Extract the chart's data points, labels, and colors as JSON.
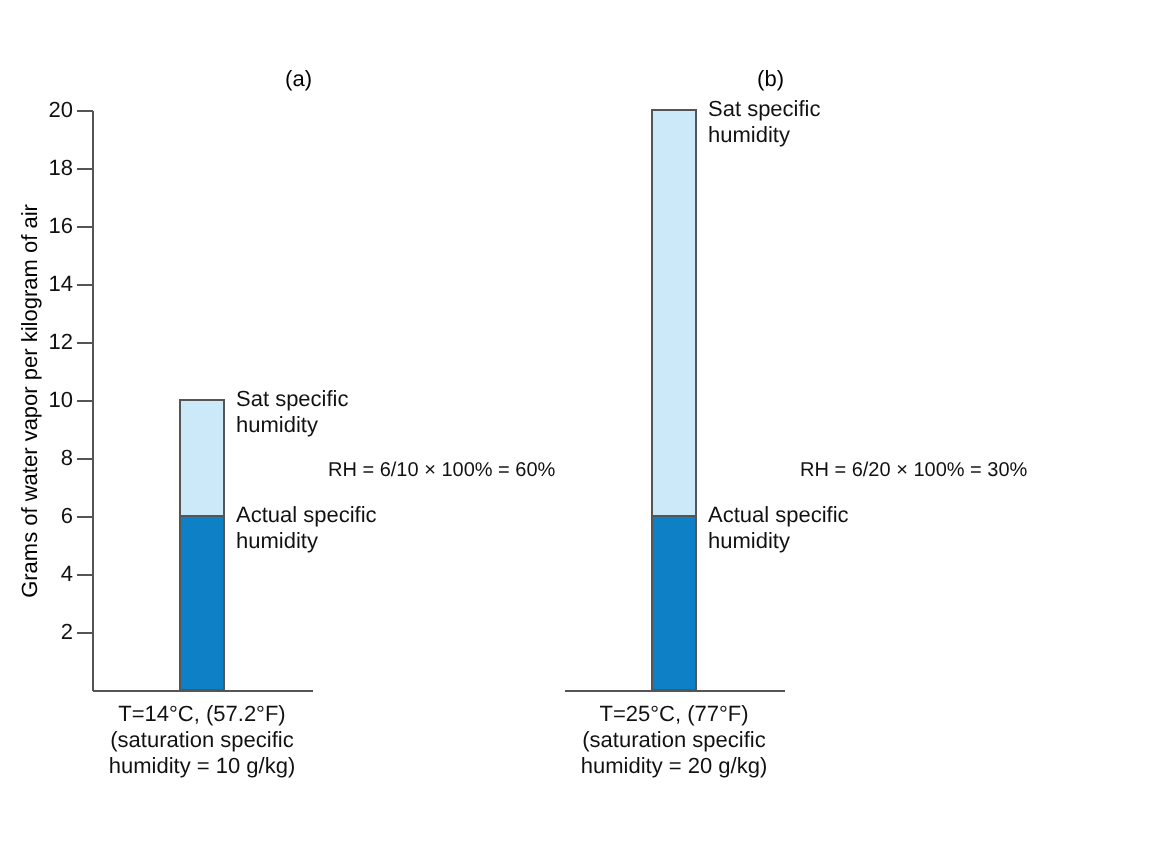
{
  "chart_data": [
    {
      "type": "bar",
      "title": "(a)",
      "ylabel": "Grams of water vapor per kilogram of air",
      "categories": [
        "T=14°C, (57.2°F) (saturation specific humidity = 10 g/kg)"
      ],
      "stacked": true,
      "series": [
        {
          "name": "Actual specific humidity",
          "color": "#0d80c6",
          "values": [
            6
          ]
        },
        {
          "name": "Sat specific humidity",
          "color": "#cce9fa",
          "values": [
            4
          ]
        }
      ],
      "ylim": [
        0,
        20
      ],
      "yticks": [
        2,
        4,
        6,
        8,
        10,
        12,
        14,
        16,
        18,
        20
      ],
      "annotations": [
        "RH = 6/10 × 100% = 60%"
      ]
    },
    {
      "type": "bar",
      "title": "(b)",
      "categories": [
        "T=25°C, (77°F) (saturation specific humidity = 20 g/kg)"
      ],
      "stacked": true,
      "series": [
        {
          "name": "Actual specific humidity",
          "color": "#0d80c6",
          "values": [
            6
          ]
        },
        {
          "name": "Sat specific humidity",
          "color": "#cce9fa",
          "values": [
            14
          ]
        }
      ],
      "ylim": [
        0,
        20
      ],
      "tick_labels": "x",
      "annotations": [
        "RH = 6/20 × 100% = 30%"
      ]
    }
  ]
}
